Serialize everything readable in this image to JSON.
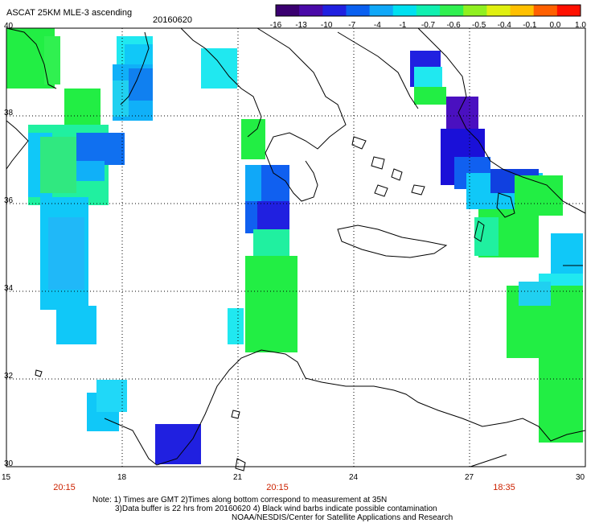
{
  "header": {
    "title": "ASCAT 25KM MLE-3 ascending",
    "date": "20160620"
  },
  "colorbar": {
    "labels": [
      "-16",
      "-13",
      "-10",
      "-7",
      "-4",
      "-1",
      "-0.7",
      "-0.6",
      "-0.5",
      "-0.4",
      "-0.1",
      "0.0",
      "1.0"
    ],
    "colors": [
      "#3a0070",
      "#4a0aa8",
      "#2020e0",
      "#0a60f0",
      "#10a8f8",
      "#00e0f0",
      "#10f0b0",
      "#30f050",
      "#90f020",
      "#e0f010",
      "#ffc000",
      "#ff6000",
      "#ff1000"
    ]
  },
  "axes": {
    "lon_labels": [
      "15",
      "18",
      "21",
      "24",
      "27",
      "30"
    ],
    "lat_labels": [
      "40",
      "38",
      "36",
      "34",
      "32",
      "30"
    ]
  },
  "time_labels": [
    "20:15",
    "20:15",
    "18:35"
  ],
  "notes": {
    "line1": "Note: 1) Times are GMT 2)Times along bottom correspond to measurement at 35N",
    "line2": "3)Data buffer is 22 hrs from 20160620 4) Black wind barbs indicate possible contamination",
    "line3": "NOAA/NESDIS/Center for Satellite Applications and Research"
  },
  "palette": {
    "green": "#22ee44",
    "aqua_green": "#20f0a0",
    "cyan": "#20e8f0",
    "sky": "#10c8f8",
    "light_blue": "#10b0f8",
    "blue": "#1060f0",
    "deep_blue": "#2020e0",
    "navy": "#1a10d8",
    "violet": "#4a10c0"
  }
}
